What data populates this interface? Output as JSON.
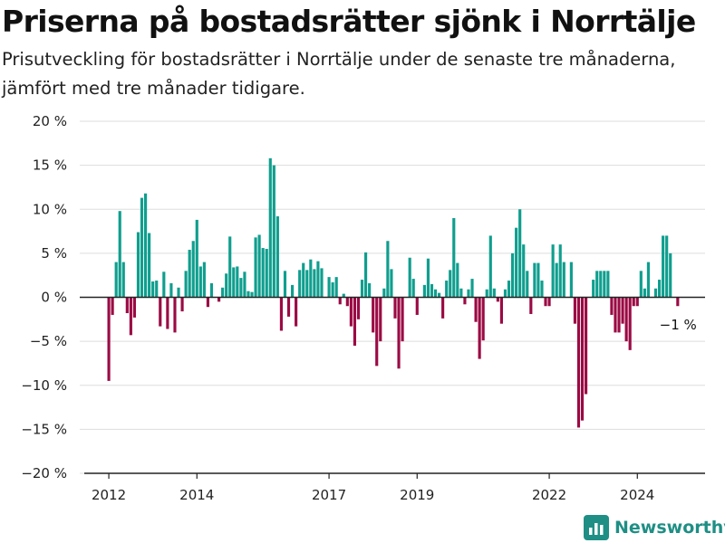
{
  "header": {
    "title": "Priserna på bostadsrätter sjönk i Norrtälje",
    "subtitle": "Prisutveckling för bostadsrätter i Norrtälje under de senaste tre månaderna, jämfört med tre månader tidigare."
  },
  "brand": {
    "name": "Newsworthy",
    "icon": "newsworthy-logo-icon"
  },
  "colors": {
    "positive": "#0f9e8e",
    "negative": "#9b0a44",
    "grid": "#dddddd",
    "axis": "#222222"
  },
  "chart_data": {
    "type": "bar",
    "title": "Priserna på bostadsrätter sjönk i Norrtälje",
    "xlabel": "",
    "ylabel": "",
    "ylim": [
      -20,
      20
    ],
    "yticks": [
      -20,
      -15,
      -10,
      -5,
      0,
      5,
      10,
      15,
      20
    ],
    "ytick_labels": [
      "−20 %",
      "−15 %",
      "−10 %",
      "−5 %",
      "0 %",
      "5 %",
      "10 %",
      "15 %",
      "20 %"
    ],
    "x_start": "2012-01",
    "xticks": [
      {
        "label": "2012",
        "date": "2012-01"
      },
      {
        "label": "2014",
        "date": "2014-01"
      },
      {
        "label": "2017",
        "date": "2017-01"
      },
      {
        "label": "2019",
        "date": "2019-01"
      },
      {
        "label": "2022",
        "date": "2022-01"
      },
      {
        "label": "2024",
        "date": "2024-01"
      }
    ],
    "grid": true,
    "annotation": {
      "text": "−1 %",
      "value": -1,
      "date": "2024-12"
    },
    "values": [
      -9.5,
      -2,
      4,
      9.8,
      4,
      -1.8,
      -4.3,
      -2.3,
      7.4,
      11.3,
      11.8,
      7.3,
      1.8,
      1.9,
      -3.3,
      2.9,
      -3.6,
      1.6,
      -4,
      1.1,
      -1.6,
      3,
      5.4,
      6.4,
      8.8,
      3.5,
      4,
      -1.1,
      1.6,
      0,
      -0.5,
      1.1,
      2.7,
      6.9,
      3.4,
      3.5,
      2.2,
      2.9,
      0.7,
      0.6,
      6.8,
      7.1,
      5.6,
      5.5,
      15.8,
      15,
      9.2,
      -3.8,
      3,
      -2.2,
      1.4,
      -3.3,
      3.1,
      3.9,
      3.1,
      4.3,
      3.2,
      4.1,
      3.3,
      0,
      2.3,
      1.7,
      2.3,
      -0.8,
      0.4,
      -1,
      -3.3,
      -5.5,
      -2.5,
      2,
      5.1,
      1.6,
      -4,
      -7.8,
      -5,
      1,
      6.4,
      3.2,
      -2.4,
      -8.1,
      -5,
      0,
      4.5,
      2.1,
      -2,
      0,
      1.4,
      4.4,
      1.5,
      0.9,
      0.5,
      -2.4,
      1.9,
      3.1,
      9,
      3.9,
      1,
      -0.8,
      0.9,
      2.1,
      -2.8,
      -7,
      -4.9,
      0.9,
      7,
      1,
      -0.5,
      -3,
      0.9,
      1.9,
      5,
      7.9,
      10,
      6,
      3,
      -1.9,
      3.9,
      3.9,
      1.9,
      -1,
      -1,
      6,
      3.9,
      6,
      4,
      0,
      4,
      -3,
      -14.8,
      -14,
      -11,
      0,
      2,
      3,
      3,
      3,
      3,
      -2,
      -4,
      -4,
      -3,
      -5,
      -6,
      -1,
      -1,
      3,
      1,
      4,
      0,
      1,
      2,
      7,
      7,
      5,
      0,
      -1
    ]
  }
}
